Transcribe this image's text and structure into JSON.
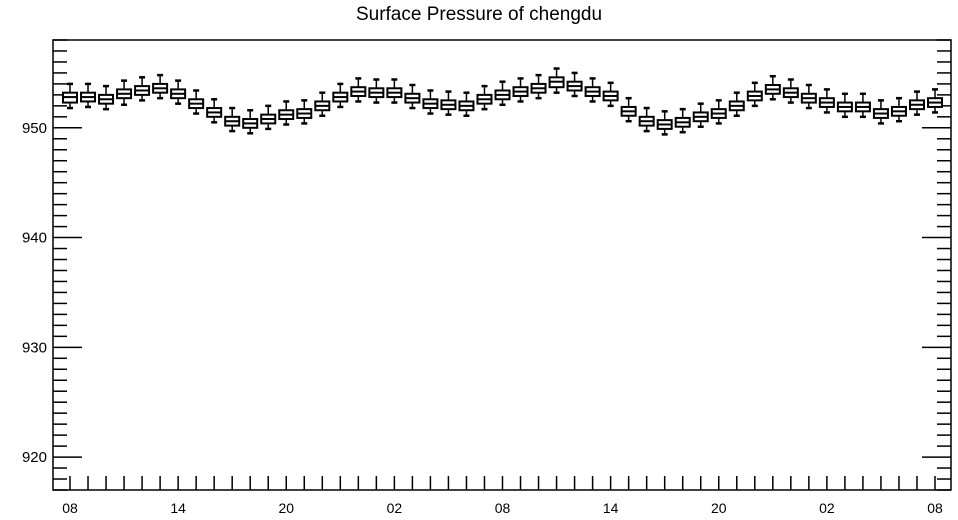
{
  "chart_data": {
    "type": "box",
    "title": "Surface Pressure of chengdu",
    "xlabel": "",
    "ylabel": "",
    "ylim": [
      917,
      958
    ],
    "yticks": [
      920,
      930,
      940,
      950
    ],
    "ytick_labels": [
      "920",
      "930",
      "940",
      "950"
    ],
    "xtick_labels": [
      "08",
      "14",
      "20",
      "02",
      "08",
      "14",
      "20",
      "02",
      "08"
    ],
    "grid": false,
    "series": [
      {
        "box_count": 49,
        "median": [
          952.8,
          952.8,
          952.6,
          953.1,
          953.4,
          953.6,
          953.1,
          952.2,
          951.4,
          950.6,
          950.4,
          950.8,
          951.2,
          951.3,
          952.0,
          952.8,
          953.3,
          953.2,
          953.2,
          952.7,
          952.2,
          952.1,
          952.0,
          952.6,
          953.0,
          953.3,
          953.6,
          954.2,
          953.8,
          953.3,
          952.9,
          951.5,
          950.6,
          950.3,
          950.5,
          951.0,
          951.3,
          952.0,
          952.9,
          953.5,
          953.2,
          952.7,
          952.3,
          951.9,
          951.9,
          951.3,
          951.5,
          952.1,
          952.3
        ],
        "q1": [
          952.3,
          952.4,
          952.2,
          952.7,
          953.0,
          953.2,
          952.7,
          951.8,
          951.0,
          950.2,
          950.0,
          950.4,
          950.8,
          950.9,
          951.6,
          952.4,
          952.9,
          952.8,
          952.8,
          952.3,
          951.8,
          951.7,
          951.6,
          952.2,
          952.6,
          952.9,
          953.2,
          953.7,
          953.4,
          952.9,
          952.5,
          951.1,
          950.2,
          949.9,
          950.1,
          950.6,
          950.9,
          951.6,
          952.5,
          953.1,
          952.8,
          952.3,
          951.9,
          951.5,
          951.5,
          950.9,
          951.1,
          951.7,
          951.9
        ],
        "q3": [
          953.2,
          953.2,
          953.0,
          953.5,
          953.8,
          954.0,
          953.5,
          952.6,
          951.8,
          951.0,
          950.8,
          951.2,
          951.6,
          951.7,
          952.4,
          953.2,
          953.7,
          953.6,
          953.6,
          953.1,
          952.6,
          952.5,
          952.4,
          953.0,
          953.4,
          953.7,
          954.0,
          954.6,
          954.2,
          953.7,
          953.3,
          951.9,
          951.0,
          950.7,
          950.9,
          951.4,
          951.7,
          952.4,
          953.3,
          953.9,
          953.6,
          953.1,
          952.7,
          952.3,
          952.3,
          951.7,
          951.9,
          952.5,
          952.7
        ],
        "min": [
          951.8,
          951.9,
          951.7,
          952.1,
          952.5,
          952.7,
          952.2,
          951.3,
          950.5,
          949.7,
          949.5,
          949.9,
          950.3,
          950.4,
          951.1,
          951.9,
          952.4,
          952.3,
          952.3,
          951.8,
          951.3,
          951.2,
          951.1,
          951.7,
          952.1,
          952.4,
          952.7,
          953.2,
          952.9,
          952.4,
          952.0,
          950.6,
          949.7,
          949.4,
          949.6,
          950.1,
          950.4,
          951.1,
          952.0,
          952.6,
          952.3,
          951.8,
          951.4,
          951.0,
          951.0,
          950.4,
          950.6,
          951.2,
          951.4
        ],
        "max": [
          954.0,
          954.0,
          953.8,
          954.3,
          954.6,
          954.8,
          954.3,
          953.4,
          952.6,
          951.8,
          951.6,
          952.0,
          952.4,
          952.5,
          953.2,
          954.0,
          954.5,
          954.4,
          954.4,
          953.9,
          953.4,
          953.3,
          953.2,
          953.8,
          954.2,
          954.5,
          954.8,
          955.4,
          955.0,
          954.5,
          954.1,
          952.7,
          951.8,
          951.5,
          951.7,
          952.2,
          952.5,
          953.2,
          954.1,
          954.7,
          954.4,
          953.9,
          953.5,
          953.1,
          953.1,
          952.5,
          952.7,
          953.3,
          953.5
        ]
      }
    ]
  }
}
